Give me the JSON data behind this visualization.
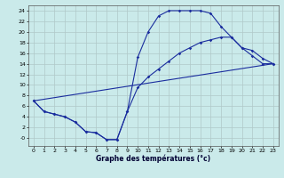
{
  "title": "Graphe des températures (°c)",
  "background_color": "#caeaea",
  "line_color": "#1a2d9e",
  "grid_color": "#b0c8c8",
  "xlim": [
    -0.5,
    23.5
  ],
  "ylim": [
    -1.5,
    25
  ],
  "xticks": [
    0,
    1,
    2,
    3,
    4,
    5,
    6,
    7,
    8,
    9,
    10,
    11,
    12,
    13,
    14,
    15,
    16,
    17,
    18,
    19,
    20,
    21,
    22,
    23
  ],
  "yticks": [
    0,
    2,
    4,
    6,
    8,
    10,
    12,
    14,
    16,
    18,
    20,
    22,
    24
  ],
  "ytick_labels": [
    "-0",
    "2",
    "4",
    "6",
    "8",
    "10",
    "12",
    "14",
    "16",
    "18",
    "20",
    "22",
    "24"
  ],
  "curve1_x": [
    0,
    1,
    2,
    3,
    4,
    5,
    6,
    7,
    8,
    9,
    10,
    11,
    12,
    13,
    14,
    15,
    16,
    17,
    18,
    19,
    20,
    21,
    22,
    23
  ],
  "curve1_y": [
    7,
    5,
    4.5,
    4,
    3,
    1.2,
    1.0,
    -0.3,
    -0.3,
    5,
    15.2,
    20,
    23,
    24,
    24,
    24,
    24,
    23.5,
    21,
    19,
    17,
    15.5,
    14,
    14
  ],
  "curve2_x": [
    0,
    1,
    2,
    3,
    4,
    5,
    6,
    7,
    8,
    9,
    10,
    11,
    12,
    13,
    14,
    15,
    16,
    17,
    18,
    19,
    20,
    21,
    22,
    23
  ],
  "curve2_y": [
    7,
    5,
    4.5,
    4,
    3,
    1.2,
    1.0,
    -0.3,
    -0.3,
    5,
    9.5,
    11.5,
    13,
    14.5,
    16,
    17,
    18,
    18.5,
    19,
    19,
    17,
    16.5,
    15,
    14
  ],
  "curve3_x": [
    0,
    23
  ],
  "curve3_y": [
    7,
    14
  ]
}
